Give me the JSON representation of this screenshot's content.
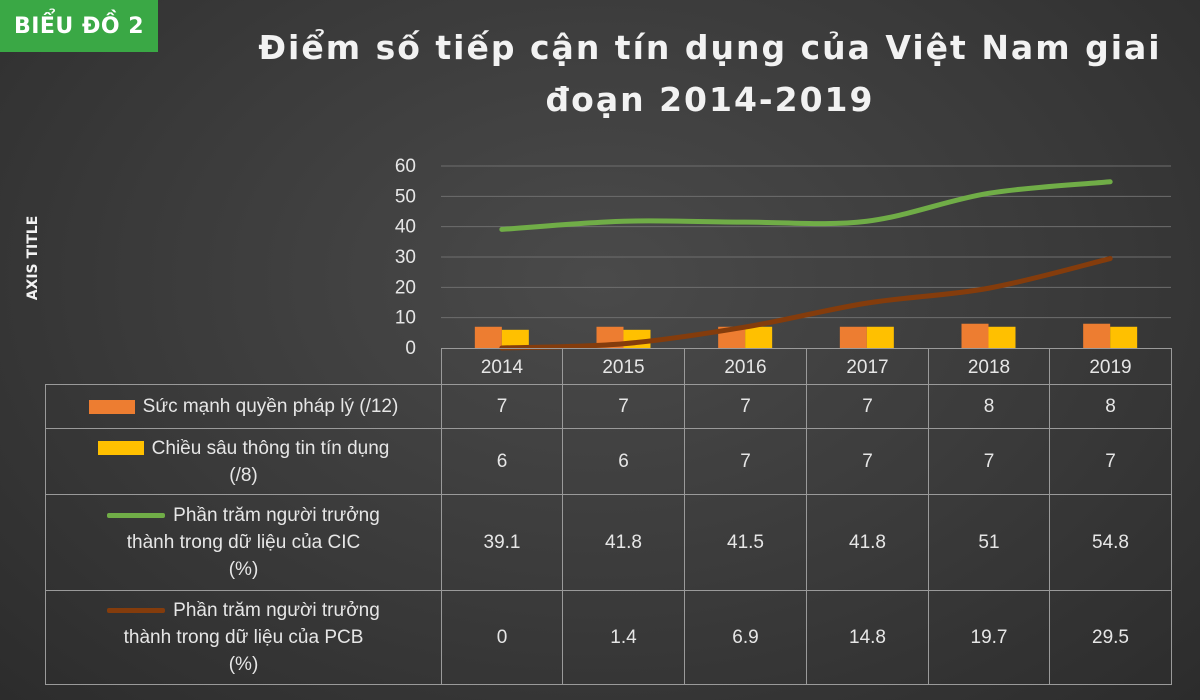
{
  "badge": "BIỂU ĐỒ 2",
  "title_line1": "Điểm số tiếp cận tín dụng của Việt Nam giai",
  "title_line2": "đoạn 2014-2019",
  "chart_data": {
    "type": "bar",
    "title": "Điểm số tiếp cận tín dụng của Việt Nam giai đoạn 2014-2019",
    "ylabel": "AXIS TITLE",
    "ylim": [
      0,
      60
    ],
    "yticks": [
      "0",
      "10",
      "20",
      "30",
      "40",
      "50",
      "60"
    ],
    "grid": true,
    "categories": [
      "2014",
      "2015",
      "2016",
      "2017",
      "2018",
      "2019"
    ],
    "series": [
      {
        "name": "Sức mạnh quyền pháp lý (/12)",
        "kind": "bar",
        "color": "#ed7d31",
        "values": [
          7,
          7,
          7,
          7,
          8,
          8
        ]
      },
      {
        "name": "Chiều sâu thông tin tín dụng (/8)",
        "kind": "bar",
        "color": "#ffc000",
        "values": [
          6,
          6,
          7,
          7,
          7,
          7
        ]
      },
      {
        "name": "Phần trăm người trưởng thành trong dữ liệu của CIC (%)",
        "kind": "line",
        "color": "#70ad47",
        "values": [
          39.1,
          41.8,
          41.5,
          41.8,
          51,
          54.8
        ]
      },
      {
        "name": "Phần trăm người trưởng thành trong dữ liệu của PCB (%)",
        "kind": "line",
        "color": "#843c0c",
        "values": [
          0,
          1.4,
          6.9,
          14.8,
          19.7,
          29.5
        ]
      }
    ],
    "table_values": [
      [
        "7",
        "7",
        "7",
        "7",
        "8",
        "8"
      ],
      [
        "6",
        "6",
        "7",
        "7",
        "7",
        "7"
      ],
      [
        "39.1",
        "41.8",
        "41.5",
        "41.8",
        "51",
        "54.8"
      ],
      [
        "0",
        "1.4",
        "6.9",
        "14.8",
        "19.7",
        "29.5"
      ]
    ],
    "table_labels": [
      [
        "Sức mạnh quyền pháp lý (/12)"
      ],
      [
        "Chiều sâu thông tin tín dụng",
        "(/8)"
      ],
      [
        "Phần trăm người trưởng",
        "thành trong dữ liệu của CIC",
        "(%)"
      ],
      [
        "Phần trăm người trưởng",
        "thành trong dữ liệu của PCB",
        "(%)"
      ]
    ]
  }
}
